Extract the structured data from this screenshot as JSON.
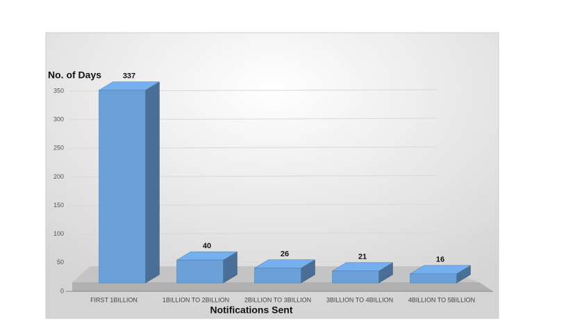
{
  "chart_data": {
    "type": "bar3d",
    "y_axis_title": "No. of Days",
    "x_axis_title": "Notifications Sent",
    "categories": [
      "FIRST 1BILLION",
      "1BILLION TO 2BILLION",
      "2BILLION TO 3BILLION",
      "3BILLION TO 4BILLION",
      "4BILLION TO 5BILLION"
    ],
    "values": [
      337,
      40,
      26,
      21,
      16
    ],
    "color": "#6a9fd8",
    "ylim": [
      0,
      350
    ],
    "yticks": [
      0,
      50,
      100,
      150,
      200,
      250,
      300,
      350
    ],
    "grid": true
  }
}
